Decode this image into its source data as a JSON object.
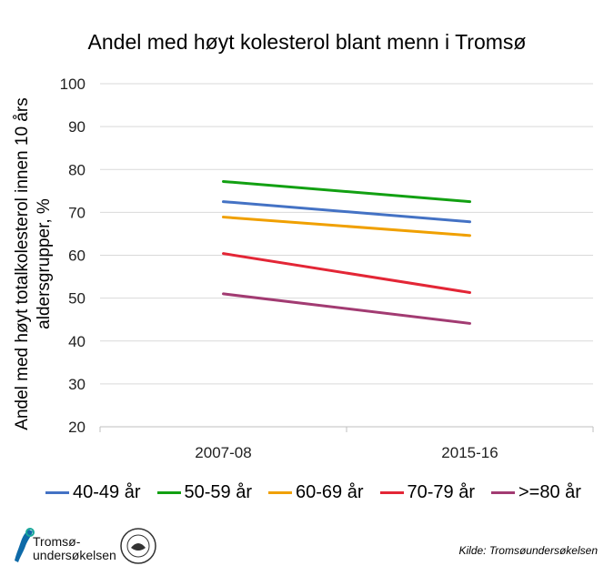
{
  "chart_data": {
    "type": "line",
    "title": "Andel med høyt kolesterol blant menn i Tromsø",
    "ylabel": "Andel med høyt totalkolesterol innen 10 års aldersgrupper, %",
    "xlabel": "",
    "categories": [
      "2007-08",
      "2015-16"
    ],
    "ylim": [
      20,
      100
    ],
    "yticks": [
      20,
      30,
      40,
      50,
      60,
      70,
      80,
      90,
      100
    ],
    "grid": true,
    "legend_position": "bottom",
    "series": [
      {
        "name": "40-49 år",
        "values": [
          72.5,
          67.8
        ],
        "color": "#4472C4"
      },
      {
        "name": "50-59 år",
        "values": [
          77.2,
          72.5
        ],
        "color": "#12A012"
      },
      {
        "name": "60-69 år",
        "values": [
          68.9,
          64.6
        ],
        "color": "#F0A000"
      },
      {
        "name": "70-79 år",
        "values": [
          60.4,
          51.3
        ],
        "color": "#E32636"
      },
      {
        "name": ">=80 år",
        "values": [
          51.0,
          44.1
        ],
        "color": "#A23B72"
      }
    ]
  },
  "source_text": "Kilde: Tromsøundersøkelsen",
  "logo_text_line1": "Tromsø-",
  "logo_text_line2": "undersøkelsen",
  "seal_text": "UNIVERSITETET I TROMSØ"
}
